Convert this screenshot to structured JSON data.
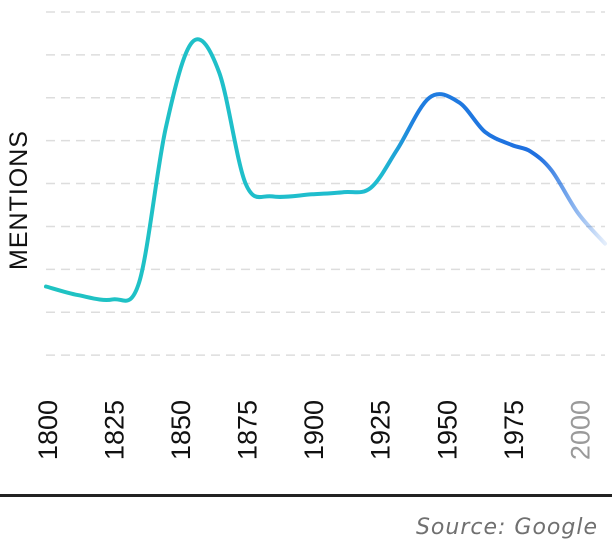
{
  "chart_data": {
    "type": "line",
    "title": "",
    "xlabel": "",
    "ylabel": "MENTIONS",
    "x_ticks": [
      "1800",
      "1825",
      "1850",
      "1875",
      "1900",
      "1925",
      "1950",
      "1975",
      "2000"
    ],
    "xlim": [
      1800,
      2010
    ],
    "ylim": [
      0,
      9
    ],
    "grid": true,
    "series": [
      {
        "x": [
          1800,
          1812,
          1825,
          1835,
          1845,
          1855,
          1865,
          1875,
          1885,
          1900,
          1912,
          1922,
          1932,
          1944,
          1955,
          1965,
          1975,
          1982,
          1990,
          2000,
          2010
        ],
        "values": [
          2.6,
          2.4,
          2.3,
          2.7,
          6.3,
          8.3,
          7.6,
          5.0,
          4.7,
          4.75,
          4.8,
          4.9,
          5.8,
          7.0,
          6.9,
          6.2,
          5.9,
          5.75,
          5.3,
          4.3,
          3.6
        ]
      }
    ],
    "colors": {
      "line_start": "#1fc3c2",
      "line_end": "#1f6fe0",
      "grid": "#dddddd",
      "future_tick": "#9a9a9a",
      "baseline": "#222222"
    }
  },
  "source": "Source: Google"
}
